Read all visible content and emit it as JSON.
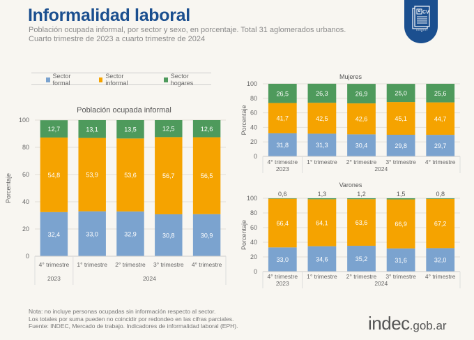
{
  "header": {
    "title": "Informalidad laboral",
    "subtitle_line1": "Población ocupada informal, por sector y sexo, en porcentaje. Total 31 aglomerados urbanos.",
    "subtitle_line2": "Cuarto trimestre de 2023 a cuarto trimestre de 2024",
    "badge_icon": "cv-document-icon",
    "badge_text": "CV"
  },
  "legend": [
    {
      "label": "Sector formal",
      "color": "#7ba3cf"
    },
    {
      "label": "Sector informal",
      "color": "#f5a300"
    },
    {
      "label": "Sector hogares",
      "color": "#4e9a5c"
    }
  ],
  "chart_data": [
    {
      "type": "bar",
      "stacked": true,
      "title": "Población ocupada informal",
      "ylabel": "Porcentaje",
      "xlabel": "",
      "ylim": [
        0,
        100
      ],
      "yticks": [
        0,
        20,
        40,
        60,
        80,
        100
      ],
      "categories": [
        "4° trimestre",
        "1° trimestre",
        "2° trimestre",
        "3° trimestre",
        "4° trimestre"
      ],
      "year_groups": [
        {
          "label": "2023",
          "span": 1
        },
        {
          "label": "2024",
          "span": 4
        }
      ],
      "series": [
        {
          "name": "Sector formal",
          "values": [
            32.4,
            33.0,
            32.9,
            30.8,
            30.9
          ],
          "labels": [
            "32,4",
            "33,0",
            "32,9",
            "30,8",
            "30,9"
          ],
          "color": "#7ba3cf"
        },
        {
          "name": "Sector informal",
          "values": [
            54.8,
            53.9,
            53.6,
            56.7,
            56.5
          ],
          "labels": [
            "54,8",
            "53,9",
            "53,6",
            "56,7",
            "56,5"
          ],
          "color": "#f5a300"
        },
        {
          "name": "Sector hogares",
          "values": [
            12.7,
            13.1,
            13.5,
            12.5,
            12.6
          ],
          "labels": [
            "12,7",
            "13,1",
            "13,5",
            "12,5",
            "12,6"
          ],
          "color": "#4e9a5c"
        }
      ],
      "grid": true
    },
    {
      "type": "bar",
      "stacked": true,
      "title": "Mujeres",
      "ylabel": "Porcentaje",
      "xlabel": "",
      "ylim": [
        0,
        100
      ],
      "yticks": [
        0,
        20,
        40,
        60,
        80,
        100
      ],
      "categories": [
        "4° trimestre",
        "1° trimestre",
        "2° trimestre",
        "3° trimestre",
        "4° trimestre"
      ],
      "year_groups": [
        {
          "label": "2023",
          "span": 1
        },
        {
          "label": "2024",
          "span": 4
        }
      ],
      "series": [
        {
          "name": "Sector formal",
          "values": [
            31.8,
            31.3,
            30.4,
            29.8,
            29.7
          ],
          "labels": [
            "31,8",
            "31,3",
            "30,4",
            "29,8",
            "29,7"
          ],
          "color": "#7ba3cf"
        },
        {
          "name": "Sector informal",
          "values": [
            41.7,
            42.5,
            42.6,
            45.1,
            44.7
          ],
          "labels": [
            "41,7",
            "42,5",
            "42,6",
            "45,1",
            "44,7"
          ],
          "color": "#f5a300"
        },
        {
          "name": "Sector hogares",
          "values": [
            26.5,
            26.3,
            26.9,
            25.0,
            25.6
          ],
          "labels": [
            "26,5",
            "26,3",
            "26,9",
            "25,0",
            "25,6"
          ],
          "color": "#4e9a5c"
        }
      ],
      "grid": true
    },
    {
      "type": "bar",
      "stacked": true,
      "title": "Varones",
      "ylabel": "Porcentaje",
      "xlabel": "",
      "ylim": [
        0,
        100
      ],
      "yticks": [
        0,
        20,
        40,
        60,
        80,
        100
      ],
      "categories": [
        "4° trimestre",
        "1° trimestre",
        "2° trimestre",
        "3° trimestre",
        "4° trimestre"
      ],
      "year_groups": [
        {
          "label": "2023",
          "span": 1
        },
        {
          "label": "2024",
          "span": 4
        }
      ],
      "series": [
        {
          "name": "Sector formal",
          "values": [
            33.0,
            34.6,
            35.2,
            31.6,
            32.0
          ],
          "labels": [
            "33,0",
            "34,6",
            "35,2",
            "31,6",
            "32,0"
          ],
          "color": "#7ba3cf"
        },
        {
          "name": "Sector informal",
          "values": [
            66.4,
            64.1,
            63.6,
            66.9,
            67.2
          ],
          "labels": [
            "66,4",
            "64,1",
            "63,6",
            "66,9",
            "67,2"
          ],
          "color": "#f5a300"
        },
        {
          "name": "Sector hogares",
          "values": [
            0.6,
            1.3,
            1.2,
            1.5,
            0.8
          ],
          "labels": [
            "0,6",
            "1,3",
            "1,2",
            "1,5",
            "0,8"
          ],
          "color": "#4e9a5c"
        }
      ],
      "grid": true
    }
  ],
  "notes": [
    "Nota: no incluye personas ocupadas sin información respecto al sector.",
    "Los totales por suma pueden no coincidir por redondeo en las cifras parciales.",
    "Fuente: INDEC, Mercado de trabajo. Indicadores de informalidad laboral (EPH)."
  ],
  "logo": {
    "main": "indec",
    "suffix": ".gob.ar"
  }
}
